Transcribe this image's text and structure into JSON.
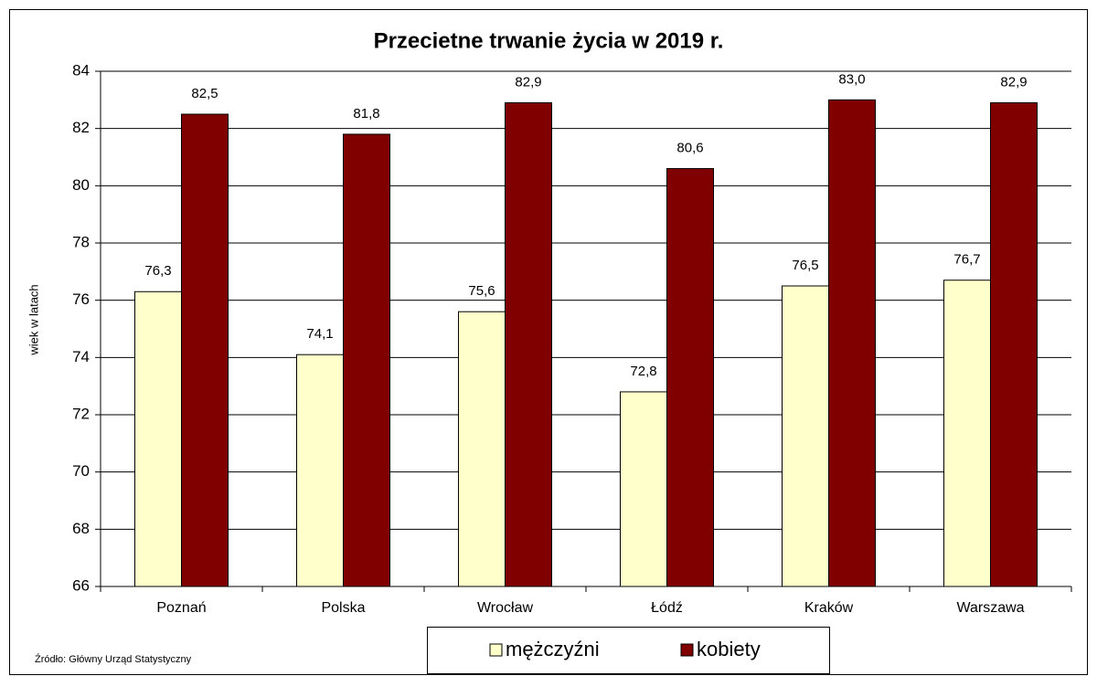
{
  "chart_data": {
    "type": "bar",
    "title": "Przecietne trwanie życia w 2019 r.",
    "y_label": "wiek w latach",
    "source": "Źródło: Główny Urząd Statystyczny",
    "categories": [
      "Poznań",
      "Polska",
      "Wrocław",
      "Łódź",
      "Kraków",
      "Warszawa"
    ],
    "series": [
      {
        "name": "mężczyźni",
        "color": "#ffffcc",
        "values": [
          76.3,
          74.1,
          75.6,
          72.8,
          76.5,
          76.7
        ],
        "value_labels": [
          "76,3",
          "74,1",
          "75,6",
          "72,8",
          "76,5",
          "76,7"
        ]
      },
      {
        "name": "kobiety",
        "color": "#800000",
        "values": [
          82.5,
          81.8,
          82.9,
          80.6,
          83,
          82.9
        ],
        "value_labels": [
          "82,5",
          "81,8",
          "82,9",
          "80,6",
          "83,0",
          "82,9"
        ]
      }
    ],
    "ylim": [
      66,
      84
    ],
    "yticks": [
      66,
      68,
      70,
      72,
      74,
      76,
      78,
      80,
      82,
      84
    ],
    "grid": true
  }
}
